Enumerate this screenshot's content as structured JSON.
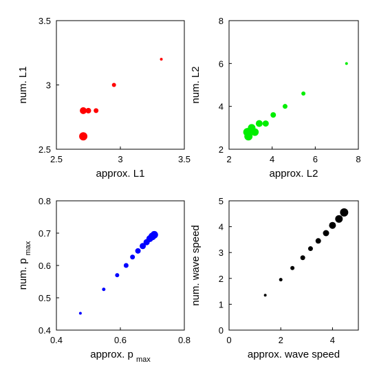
{
  "chart_data": [
    {
      "type": "scatter",
      "xlabel": "approx. L1",
      "ylabel": "num. L1",
      "xlim": [
        2.5,
        3.5
      ],
      "ylim": [
        2.5,
        3.5
      ],
      "xticks": [
        "2.5",
        "3",
        "3.5"
      ],
      "yticks": [
        "2.5",
        "3",
        "3.5"
      ],
      "color": "#ff0000",
      "grid": false,
      "points": [
        {
          "x": 3.32,
          "y": 3.2,
          "size": 3
        },
        {
          "x": 2.95,
          "y": 3.0,
          "size": 5
        },
        {
          "x": 2.81,
          "y": 2.8,
          "size": 6
        },
        {
          "x": 2.75,
          "y": 2.8,
          "size": 7
        },
        {
          "x": 2.71,
          "y": 2.8,
          "size": 9
        },
        {
          "x": 2.71,
          "y": 2.6,
          "size": 11
        }
      ]
    },
    {
      "type": "scatter",
      "xlabel": "approx. L2",
      "ylabel": "num. L2",
      "xlim": [
        2,
        8
      ],
      "ylim": [
        2,
        8
      ],
      "xticks": [
        "2",
        "4",
        "6",
        "8"
      ],
      "yticks": [
        "2",
        "4",
        "6",
        "8"
      ],
      "color": "#00ee00",
      "grid": false,
      "points": [
        {
          "x": 7.45,
          "y": 6.0,
          "size": 3
        },
        {
          "x": 5.45,
          "y": 4.6,
          "size": 5
        },
        {
          "x": 4.6,
          "y": 4.0,
          "size": 6
        },
        {
          "x": 4.05,
          "y": 3.6,
          "size": 7
        },
        {
          "x": 3.7,
          "y": 3.2,
          "size": 8
        },
        {
          "x": 3.4,
          "y": 3.2,
          "size": 9
        },
        {
          "x": 3.2,
          "y": 2.8,
          "size": 10
        },
        {
          "x": 3.05,
          "y": 3.0,
          "size": 10
        },
        {
          "x": 2.85,
          "y": 2.8,
          "size": 11
        },
        {
          "x": 2.9,
          "y": 2.6,
          "size": 11
        }
      ]
    },
    {
      "type": "scatter",
      "xlabel": "approx. p",
      "xlabel_sub": "max",
      "ylabel": "num. p",
      "ylabel_sub": "max",
      "xlim": [
        0.4,
        0.8
      ],
      "ylim": [
        0.4,
        0.8
      ],
      "xticks": [
        "0.4",
        "0.6",
        "0.8"
      ],
      "yticks": [
        "0.4",
        "0.5",
        "0.6",
        "0.7",
        "0.8"
      ],
      "color": "#0000ff",
      "grid": false,
      "points": [
        {
          "x": 0.475,
          "y": 0.452,
          "size": 3
        },
        {
          "x": 0.548,
          "y": 0.526,
          "size": 4
        },
        {
          "x": 0.59,
          "y": 0.57,
          "size": 5
        },
        {
          "x": 0.618,
          "y": 0.6,
          "size": 6
        },
        {
          "x": 0.638,
          "y": 0.626,
          "size": 6
        },
        {
          "x": 0.655,
          "y": 0.645,
          "size": 7
        },
        {
          "x": 0.67,
          "y": 0.66,
          "size": 8
        },
        {
          "x": 0.682,
          "y": 0.672,
          "size": 8
        },
        {
          "x": 0.692,
          "y": 0.683,
          "size": 9
        },
        {
          "x": 0.7,
          "y": 0.69,
          "size": 10
        },
        {
          "x": 0.706,
          "y": 0.695,
          "size": 10
        }
      ]
    },
    {
      "type": "scatter",
      "xlabel": "approx. wave speed",
      "ylabel": "num. wave speed",
      "xlim": [
        0,
        5
      ],
      "ylim": [
        0,
        5
      ],
      "xticks": [
        "0",
        "2",
        "4"
      ],
      "yticks": [
        "0",
        "1",
        "2",
        "3",
        "4",
        "5"
      ],
      "color": "#000000",
      "grid": false,
      "points": [
        {
          "x": 1.4,
          "y": 1.35,
          "size": 3
        },
        {
          "x": 2.0,
          "y": 1.95,
          "size": 4
        },
        {
          "x": 2.45,
          "y": 2.4,
          "size": 5
        },
        {
          "x": 2.85,
          "y": 2.8,
          "size": 6
        },
        {
          "x": 3.15,
          "y": 3.15,
          "size": 6
        },
        {
          "x": 3.45,
          "y": 3.45,
          "size": 7
        },
        {
          "x": 3.75,
          "y": 3.75,
          "size": 8
        },
        {
          "x": 4.0,
          "y": 4.05,
          "size": 9
        },
        {
          "x": 4.25,
          "y": 4.3,
          "size": 10
        },
        {
          "x": 4.45,
          "y": 4.55,
          "size": 11
        }
      ]
    }
  ]
}
